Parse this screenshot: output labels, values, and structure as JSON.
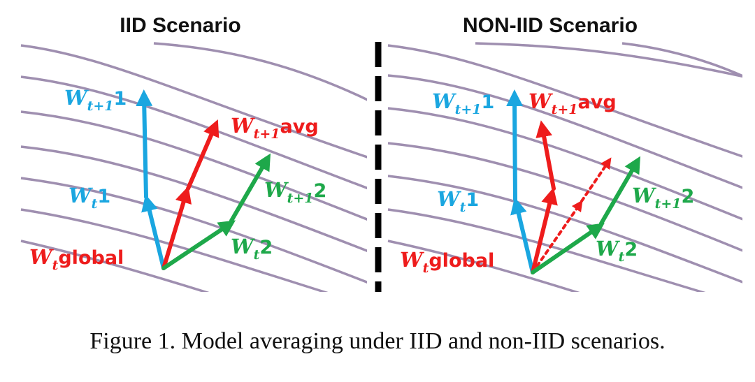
{
  "titles": {
    "left": "IID Scenario",
    "right": "NON-IID Scenario"
  },
  "caption": "Figure 1. Model averaging under IID and non-IID scenarios.",
  "colors": {
    "contour": "#9F8FB0",
    "client1": "#1AA6E0",
    "avg": "#EE1C1C",
    "client2": "#1EA84A",
    "divider": "#000000"
  },
  "labels": {
    "w": "W",
    "t": "t",
    "t1": "t+1",
    "one": "1",
    "two": "2",
    "avg": "avg",
    "global": "global"
  }
}
